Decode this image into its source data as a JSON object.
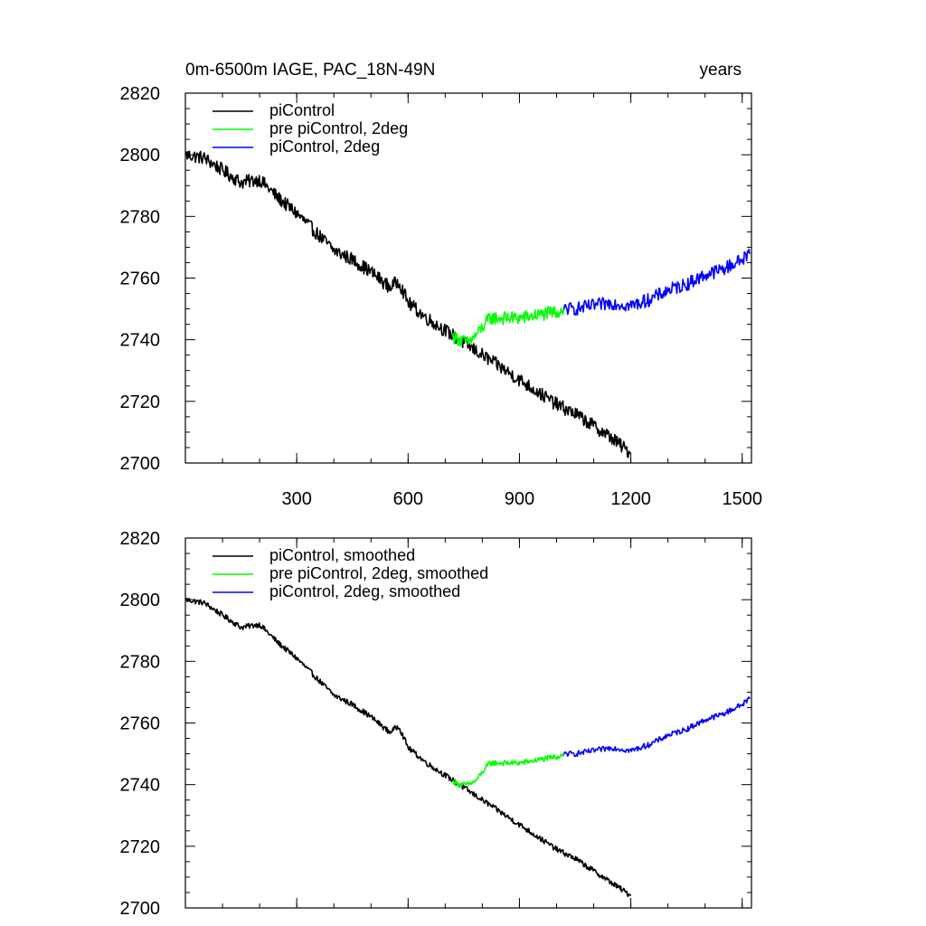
{
  "chart_data": [
    {
      "type": "line",
      "title": "0m-6500m IAGE, PAC_18N-49N",
      "title_right": "years",
      "xlabel": "",
      "ylabel": "",
      "xlim": [
        0,
        1525
      ],
      "ylim": [
        2700,
        2820
      ],
      "xticks": [
        300,
        600,
        900,
        1200,
        1500
      ],
      "xtick_labels": [
        "300",
        "600",
        "900",
        "1200",
        "1500"
      ],
      "yticks": [
        2700,
        2720,
        2740,
        2760,
        2780,
        2800,
        2820
      ],
      "ytick_labels": [
        "2700",
        "2720",
        "2740",
        "2760",
        "2780",
        "2800",
        "2820"
      ],
      "legend_position": "top-left",
      "series": [
        {
          "name": "piControl",
          "color": "#000000",
          "smoothed": false,
          "x": [
            1,
            50,
            100,
            150,
            200,
            250,
            300,
            350,
            400,
            450,
            500,
            550,
            575,
            600,
            650,
            700,
            750,
            800,
            850,
            900,
            950,
            1000,
            1050,
            1100,
            1150,
            1200
          ],
          "y": [
            2800,
            2799,
            2795,
            2791,
            2792,
            2786,
            2781,
            2775,
            2769,
            2766,
            2762,
            2757,
            2759,
            2752,
            2747,
            2743,
            2739,
            2735,
            2731,
            2727,
            2723,
            2719,
            2716,
            2712,
            2708,
            2703
          ]
        },
        {
          "name": "pre piControl, 2deg",
          "color": "#00ff00",
          "smoothed": false,
          "x": [
            720,
            740,
            760,
            780,
            800,
            820,
            850,
            900,
            950,
            1000,
            1020
          ],
          "y": [
            2741,
            2740,
            2739,
            2741,
            2744,
            2747,
            2747,
            2747,
            2748,
            2749,
            2750
          ]
        },
        {
          "name": "piControl, 2deg",
          "color": "#0000ff",
          "smoothed": false,
          "x": [
            1020,
            1050,
            1100,
            1150,
            1200,
            1250,
            1300,
            1350,
            1400,
            1450,
            1500,
            1520
          ],
          "y": [
            2750,
            2750,
            2751,
            2752,
            2751,
            2753,
            2756,
            2758,
            2761,
            2763,
            2766,
            2768
          ]
        }
      ]
    },
    {
      "type": "line",
      "title": "",
      "xlabel": "",
      "ylabel": "",
      "xlim": [
        0,
        1525
      ],
      "ylim": [
        2700,
        2820
      ],
      "xticks": [
        300,
        600,
        900,
        1200,
        1500
      ],
      "xtick_labels": [],
      "yticks": [
        2700,
        2720,
        2740,
        2760,
        2780,
        2800,
        2820
      ],
      "ytick_labels": [
        "2700",
        "2720",
        "2740",
        "2760",
        "2780",
        "2800",
        "2820"
      ],
      "legend_position": "top-left",
      "series": [
        {
          "name": "piControl, smoothed",
          "color": "#000000",
          "smoothed": true,
          "x": [
            1,
            50,
            100,
            150,
            200,
            250,
            300,
            350,
            400,
            450,
            500,
            550,
            575,
            600,
            650,
            700,
            750,
            800,
            850,
            900,
            950,
            1000,
            1050,
            1100,
            1150,
            1200
          ],
          "y": [
            2800,
            2799,
            2795,
            2791,
            2792,
            2786,
            2781,
            2775,
            2769,
            2766,
            2762,
            2757,
            2759,
            2752,
            2747,
            2743,
            2739,
            2735,
            2731,
            2727,
            2723,
            2719,
            2716,
            2712,
            2708,
            2704
          ]
        },
        {
          "name": "pre piControl, 2deg, smoothed",
          "color": "#00ff00",
          "smoothed": true,
          "x": [
            720,
            740,
            760,
            780,
            800,
            820,
            850,
            900,
            950,
            1000,
            1020
          ],
          "y": [
            2741,
            2740,
            2740,
            2741,
            2744,
            2747,
            2747,
            2747,
            2748,
            2749,
            2750
          ]
        },
        {
          "name": "piControl, 2deg, smoothed",
          "color": "#0000ff",
          "smoothed": true,
          "x": [
            1020,
            1050,
            1100,
            1150,
            1200,
            1250,
            1300,
            1350,
            1400,
            1450,
            1500,
            1520
          ],
          "y": [
            2750,
            2750,
            2751,
            2752,
            2751,
            2753,
            2756,
            2758,
            2761,
            2763,
            2766,
            2768
          ]
        }
      ]
    }
  ]
}
